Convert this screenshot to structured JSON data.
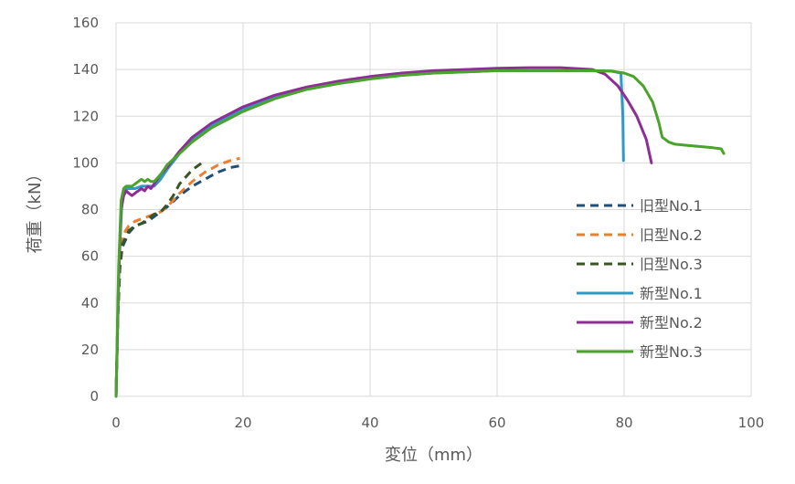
{
  "chart_data": {
    "type": "scatter",
    "xlabel": "変位（mm）",
    "ylabel": "荷重（kN）",
    "xlim": [
      0,
      100
    ],
    "ylim": [
      0,
      160
    ],
    "xticks": [
      0,
      20,
      40,
      60,
      80,
      100
    ],
    "yticks": [
      0,
      20,
      40,
      60,
      80,
      100,
      120,
      140,
      160
    ],
    "grid": true,
    "legend_position": "right",
    "series": [
      {
        "name": "旧型No.1",
        "style": "dashed",
        "color": "#1f4e79",
        "x": [
          0,
          0.3,
          0.6,
          1,
          1.5,
          2,
          3,
          4,
          5,
          6,
          7,
          8,
          10,
          12,
          14,
          16,
          18,
          20
        ],
        "y": [
          0,
          35,
          55,
          64,
          67,
          70,
          73,
          74,
          75,
          77,
          79,
          81,
          86,
          90,
          93,
          96,
          98,
          99
        ]
      },
      {
        "name": "旧型No.2",
        "style": "dashed",
        "color": "#ed7d31",
        "x": [
          0,
          0.3,
          0.6,
          1,
          1.5,
          2,
          3,
          4,
          5,
          6,
          7,
          8,
          9,
          10,
          12,
          14,
          16,
          18,
          19.5
        ],
        "y": [
          0,
          38,
          58,
          68,
          71,
          73,
          75,
          76,
          77,
          78,
          79,
          81,
          84,
          87,
          92,
          96,
          99,
          101,
          102
        ]
      },
      {
        "name": "旧型No.3",
        "style": "dashed",
        "color": "#375623",
        "x": [
          0,
          0.3,
          0.6,
          1,
          1.5,
          2,
          3,
          4,
          5,
          6,
          7,
          8,
          9,
          10,
          11,
          12,
          13.5
        ],
        "y": [
          0,
          36,
          56,
          65,
          68,
          71,
          73,
          74,
          76,
          78,
          79,
          82,
          86,
          91,
          94,
          97,
          100
        ]
      },
      {
        "name": "新型No.1",
        "style": "solid",
        "color": "#2e9ac8",
        "x": [
          0,
          0.5,
          0.9,
          1.2,
          1.6,
          2,
          3,
          4,
          5,
          6,
          7,
          8,
          10,
          12,
          15,
          20,
          25,
          30,
          35,
          40,
          45,
          50,
          55,
          60,
          65,
          70,
          75,
          78,
          79.5,
          79.8,
          79.9
        ],
        "y": [
          0,
          60,
          82,
          88,
          89,
          89,
          89,
          90,
          90,
          90,
          93,
          97,
          104,
          110,
          116,
          123,
          128,
          131.5,
          134,
          136,
          137.5,
          138.5,
          139,
          139.5,
          139.5,
          139.5,
          139.5,
          139.3,
          138.5,
          120,
          101
        ]
      },
      {
        "name": "新型No.2",
        "style": "solid",
        "color": "#8e2d96",
        "x": [
          0,
          0.4,
          0.8,
          1.2,
          1.6,
          2,
          2.5,
          3,
          3.5,
          4,
          4.5,
          5,
          5.5,
          6,
          7,
          8,
          10,
          12,
          15,
          20,
          25,
          30,
          35,
          40,
          45,
          50,
          55,
          60,
          65,
          70,
          75,
          77,
          79,
          80.5,
          82,
          83.5,
          84.3
        ],
        "y": [
          0,
          50,
          80,
          86,
          88,
          87,
          86,
          87,
          88,
          89,
          88,
          90,
          89,
          91,
          95,
          98,
          105,
          111,
          117,
          124,
          129,
          132.5,
          135,
          137,
          138.5,
          139.5,
          140,
          140.5,
          140.8,
          140.8,
          140,
          138,
          133,
          127,
          120,
          110,
          100
        ]
      },
      {
        "name": "新型No.3",
        "style": "solid",
        "color": "#4aa32a",
        "x": [
          0,
          0.4,
          0.8,
          1.2,
          1.6,
          2,
          2.5,
          3,
          3.5,
          4,
          4.5,
          5,
          5.5,
          6,
          7,
          8,
          10,
          12,
          15,
          20,
          25,
          30,
          35,
          40,
          45,
          50,
          55,
          60,
          65,
          70,
          75,
          78,
          80,
          81.5,
          83,
          84.5,
          85.5,
          86,
          86.5,
          87,
          88,
          90,
          92,
          94,
          95.3,
          95.7
        ],
        "y": [
          0,
          55,
          84,
          89,
          90,
          90,
          90,
          91,
          92,
          93,
          92,
          93,
          92,
          92,
          95,
          99,
          104,
          109,
          115,
          122,
          127.5,
          131.5,
          134,
          136,
          137.5,
          138.5,
          139,
          139.5,
          139.5,
          139.5,
          139.5,
          139.3,
          138.5,
          137,
          133,
          126,
          117,
          111,
          110,
          109,
          108,
          107.5,
          107,
          106.5,
          106,
          104
        ]
      }
    ]
  }
}
